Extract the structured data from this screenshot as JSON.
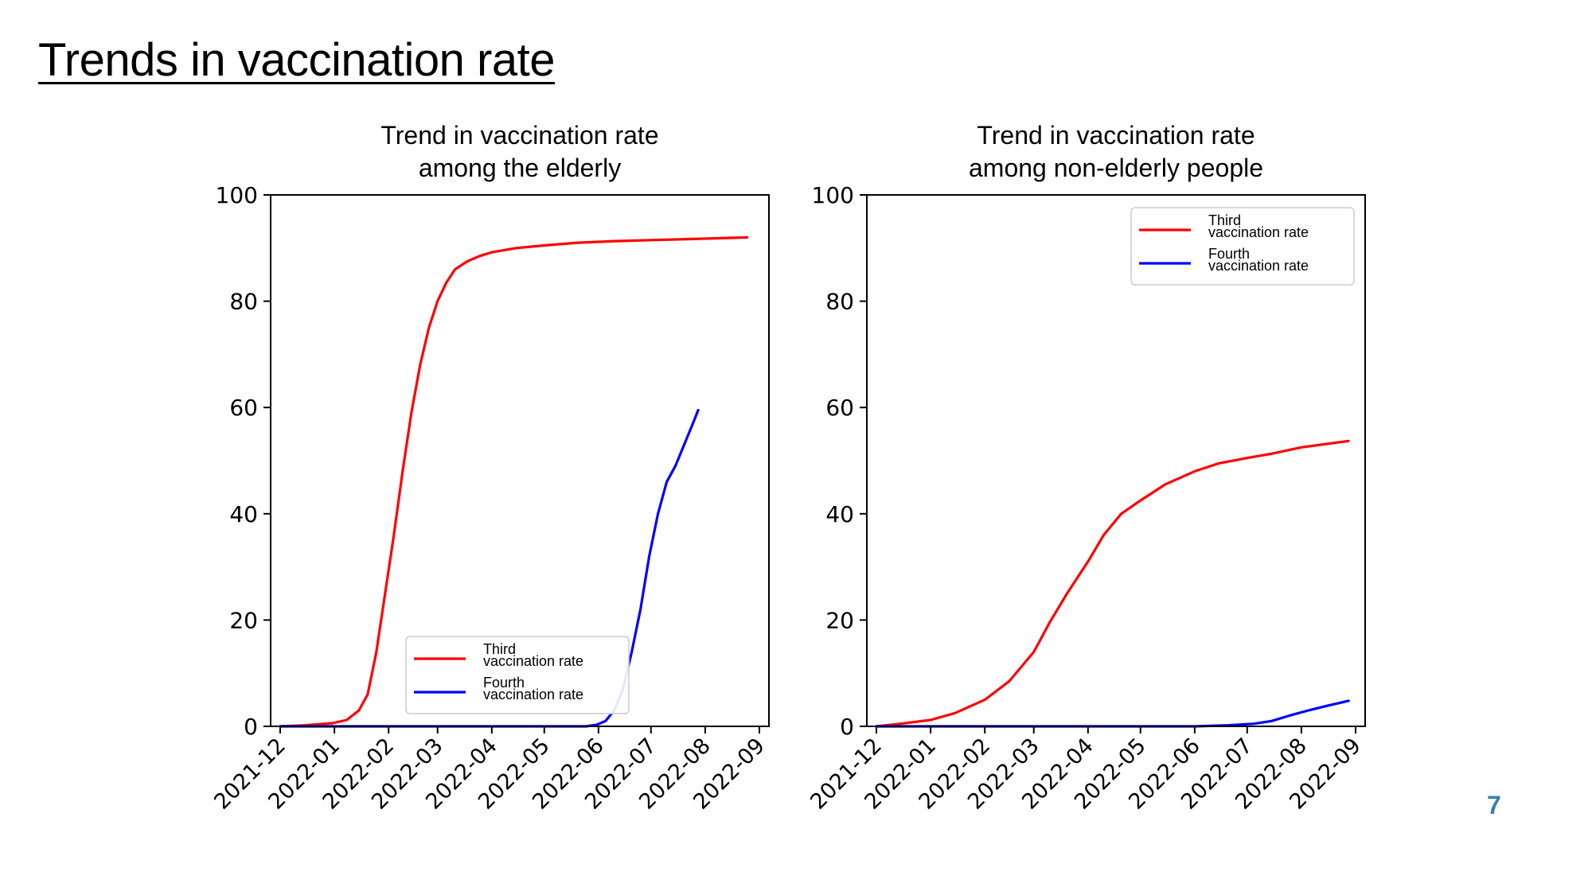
{
  "slide": {
    "title": "Trends in vaccination rate",
    "page_number": "7"
  },
  "colors": {
    "third": "#ff0000",
    "fourth": "#0000ff",
    "page_number": "#3a7fb0"
  },
  "chart_data": [
    {
      "type": "line",
      "title_lines": [
        "Trend in vaccination rate",
        "among the elderly"
      ],
      "xlabel": "",
      "ylabel": "",
      "x_ticks": [
        "2021-12",
        "2022-01",
        "2022-02",
        "2022-03",
        "2022-04",
        "2022-05",
        "2022-06",
        "2022-07",
        "2022-08",
        "2022-09"
      ],
      "y_ticks": [
        "0",
        "20",
        "40",
        "60",
        "80",
        "100"
      ],
      "ylim": [
        0,
        100
      ],
      "legend_position": "lower-right",
      "grid": false,
      "series": [
        {
          "name_lines": [
            "Third",
            "vaccination rate"
          ],
          "color_key": "third",
          "points": [
            [
              "2021-12-01",
              0
            ],
            [
              "2021-12-15",
              0.2
            ],
            [
              "2021-12-31",
              0.6
            ],
            [
              "2022-01-08",
              1.2
            ],
            [
              "2022-01-15",
              3
            ],
            [
              "2022-01-20",
              6
            ],
            [
              "2022-01-25",
              14
            ],
            [
              "2022-01-30",
              25
            ],
            [
              "2022-02-04",
              36
            ],
            [
              "2022-02-09",
              48
            ],
            [
              "2022-02-14",
              59
            ],
            [
              "2022-02-19",
              68
            ],
            [
              "2022-02-24",
              75
            ],
            [
              "2022-03-01",
              80
            ],
            [
              "2022-03-06",
              83.5
            ],
            [
              "2022-03-11",
              86
            ],
            [
              "2022-03-18",
              87.5
            ],
            [
              "2022-03-25",
              88.5
            ],
            [
              "2022-04-01",
              89.2
            ],
            [
              "2022-04-15",
              90
            ],
            [
              "2022-05-01",
              90.5
            ],
            [
              "2022-05-20",
              91
            ],
            [
              "2022-06-10",
              91.3
            ],
            [
              "2022-07-01",
              91.5
            ],
            [
              "2022-07-25",
              91.7
            ],
            [
              "2022-08-25",
              92
            ]
          ]
        },
        {
          "name_lines": [
            "Fourth",
            "vaccination rate"
          ],
          "color_key": "fourth",
          "points": [
            [
              "2021-12-01",
              0
            ],
            [
              "2022-05-25",
              0
            ],
            [
              "2022-05-31",
              0.3
            ],
            [
              "2022-06-05",
              1
            ],
            [
              "2022-06-10",
              3
            ],
            [
              "2022-06-15",
              7
            ],
            [
              "2022-06-20",
              14
            ],
            [
              "2022-06-25",
              22
            ],
            [
              "2022-06-30",
              32
            ],
            [
              "2022-07-05",
              40
            ],
            [
              "2022-07-10",
              46
            ],
            [
              "2022-07-15",
              49
            ],
            [
              "2022-07-20",
              53
            ],
            [
              "2022-07-25",
              57
            ],
            [
              "2022-07-28",
              59.5
            ]
          ]
        }
      ]
    },
    {
      "type": "line",
      "title_lines": [
        "Trend in vaccination rate",
        "among non-elderly people"
      ],
      "xlabel": "",
      "ylabel": "",
      "x_ticks": [
        "2021-12",
        "2022-01",
        "2022-02",
        "2022-03",
        "2022-04",
        "2022-05",
        "2022-06",
        "2022-07",
        "2022-08",
        "2022-09"
      ],
      "y_ticks": [
        "0",
        "20",
        "40",
        "60",
        "80",
        "100"
      ],
      "ylim": [
        0,
        100
      ],
      "legend_position": "upper-right",
      "grid": false,
      "series": [
        {
          "name_lines": [
            "Third",
            "vaccination rate"
          ],
          "color_key": "third",
          "points": [
            [
              "2021-12-01",
              0
            ],
            [
              "2021-12-15",
              0.5
            ],
            [
              "2022-01-01",
              1.2
            ],
            [
              "2022-01-15",
              2.5
            ],
            [
              "2022-02-01",
              5
            ],
            [
              "2022-02-15",
              8.5
            ],
            [
              "2022-03-01",
              14
            ],
            [
              "2022-03-10",
              19.5
            ],
            [
              "2022-03-20",
              25
            ],
            [
              "2022-04-01",
              31
            ],
            [
              "2022-04-10",
              36
            ],
            [
              "2022-04-20",
              40
            ],
            [
              "2022-05-01",
              42.5
            ],
            [
              "2022-05-15",
              45.5
            ],
            [
              "2022-06-01",
              48
            ],
            [
              "2022-06-15",
              49.5
            ],
            [
              "2022-07-01",
              50.5
            ],
            [
              "2022-07-15",
              51.3
            ],
            [
              "2022-08-01",
              52.5
            ],
            [
              "2022-08-28",
              53.7
            ]
          ]
        },
        {
          "name_lines": [
            "Fourth",
            "vaccination rate"
          ],
          "color_key": "fourth",
          "points": [
            [
              "2021-12-01",
              0
            ],
            [
              "2022-06-01",
              0
            ],
            [
              "2022-06-20",
              0.2
            ],
            [
              "2022-07-05",
              0.5
            ],
            [
              "2022-07-15",
              1
            ],
            [
              "2022-07-25",
              2
            ],
            [
              "2022-08-05",
              3
            ],
            [
              "2022-08-15",
              3.8
            ],
            [
              "2022-08-28",
              4.8
            ]
          ]
        }
      ]
    }
  ]
}
